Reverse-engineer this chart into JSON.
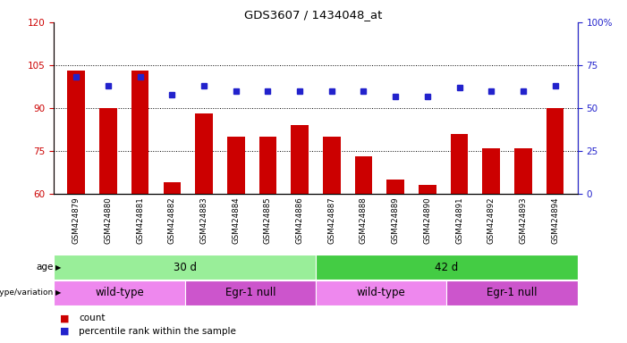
{
  "title": "GDS3607 / 1434048_at",
  "samples": [
    "GSM424879",
    "GSM424880",
    "GSM424881",
    "GSM424882",
    "GSM424883",
    "GSM424884",
    "GSM424885",
    "GSM424886",
    "GSM424887",
    "GSM424888",
    "GSM424889",
    "GSM424890",
    "GSM424891",
    "GSM424892",
    "GSM424893",
    "GSM424894"
  ],
  "counts": [
    103,
    90,
    103,
    64,
    88,
    80,
    80,
    84,
    80,
    73,
    65,
    63,
    81,
    76,
    76,
    90
  ],
  "percentile_ranks": [
    68,
    63,
    68,
    58,
    63,
    60,
    60,
    60,
    60,
    60,
    57,
    57,
    62,
    60,
    60,
    63
  ],
  "ylim_left": [
    60,
    120
  ],
  "ylim_right": [
    0,
    100
  ],
  "yticks_left": [
    60,
    75,
    90,
    105,
    120
  ],
  "yticks_right": [
    0,
    25,
    50,
    75,
    100
  ],
  "bar_color": "#cc0000",
  "dot_color": "#2222cc",
  "plot_bg": "#ffffff",
  "age_groups": [
    {
      "label": "30 d",
      "start": 0,
      "end": 8,
      "color": "#99ee99"
    },
    {
      "label": "42 d",
      "start": 8,
      "end": 16,
      "color": "#44cc44"
    }
  ],
  "genotype_groups": [
    {
      "label": "wild-type",
      "start": 0,
      "end": 4,
      "color": "#ee88ee"
    },
    {
      "label": "Egr-1 null",
      "start": 4,
      "end": 8,
      "color": "#cc55cc"
    },
    {
      "label": "wild-type",
      "start": 8,
      "end": 12,
      "color": "#ee88ee"
    },
    {
      "label": "Egr-1 null",
      "start": 12,
      "end": 16,
      "color": "#cc55cc"
    }
  ],
  "left_axis_color": "#cc0000",
  "right_axis_color": "#2222cc",
  "sample_label_bg": "#d0d0d0"
}
